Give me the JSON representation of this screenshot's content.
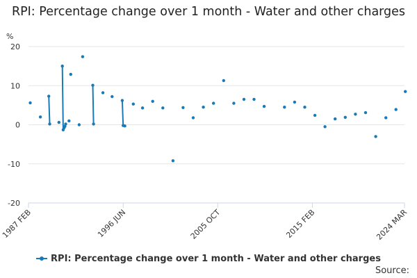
{
  "title": "RPI: Percentage change over 1 month - Water and other charges",
  "legend_label": "RPI: Percentage change over 1 month - Water and other charges",
  "source_label": "Source:",
  "colors": {
    "series": "#1a7ab5",
    "grid": "#e6e6e6",
    "axis": "#ccd6eb"
  },
  "chart_data": {
    "type": "line",
    "ylabel": "%",
    "ylim": [
      -20,
      20
    ],
    "yticks": [
      -20,
      -10,
      0,
      10,
      20
    ],
    "xlim": [
      1987.08,
      2024.17
    ],
    "xticks": [
      {
        "label": "1987 FEB",
        "value": 1987.08
      },
      {
        "label": "1996 JUN",
        "value": 1996.42
      },
      {
        "label": "2005 OCT",
        "value": 2005.75
      },
      {
        "label": "2015 FEB",
        "value": 2015.08
      },
      {
        "label": "2024 MAR",
        "value": 2024.17
      }
    ],
    "grid": true,
    "legend_position": "bottom",
    "series": [
      {
        "name": "RPI: Percentage change over 1 month - Water and other charges",
        "points": [
          [
            1987.25,
            5.6
          ],
          [
            1988.25,
            2.0
          ],
          [
            1989.08,
            7.3
          ],
          [
            1989.17,
            0.2
          ],
          [
            1990.08,
            0.6
          ],
          [
            1990.42,
            15.0
          ],
          [
            1990.5,
            -1.3
          ],
          [
            1990.58,
            -0.8
          ],
          [
            1990.67,
            -0.4
          ],
          [
            1990.75,
            0.2
          ],
          [
            1991.08,
            1.0
          ],
          [
            1991.25,
            12.9
          ],
          [
            1992.08,
            0.0
          ],
          [
            1992.42,
            17.4
          ],
          [
            1993.42,
            10.1
          ],
          [
            1993.5,
            0.2
          ],
          [
            1994.42,
            8.2
          ],
          [
            1995.33,
            7.2
          ],
          [
            1996.33,
            6.2
          ],
          [
            1996.42,
            -0.2
          ],
          [
            1996.58,
            -0.3
          ],
          [
            1997.42,
            5.3
          ],
          [
            1998.33,
            4.3
          ],
          [
            1999.33,
            6.0
          ],
          [
            2000.33,
            4.3
          ],
          [
            2001.33,
            -9.2
          ],
          [
            2002.33,
            4.4
          ],
          [
            2003.33,
            1.8
          ],
          [
            2004.33,
            4.5
          ],
          [
            2005.33,
            5.5
          ],
          [
            2006.33,
            11.3
          ],
          [
            2007.33,
            5.5
          ],
          [
            2008.33,
            6.5
          ],
          [
            2009.33,
            6.5
          ],
          [
            2010.33,
            4.7
          ],
          [
            2012.33,
            4.5
          ],
          [
            2013.33,
            5.8
          ],
          [
            2014.33,
            4.5
          ],
          [
            2015.33,
            2.4
          ],
          [
            2016.33,
            -0.5
          ],
          [
            2017.33,
            1.5
          ],
          [
            2018.33,
            1.9
          ],
          [
            2019.33,
            2.7
          ],
          [
            2020.33,
            3.1
          ],
          [
            2021.33,
            -3.0
          ],
          [
            2022.33,
            1.8
          ],
          [
            2023.33,
            3.9
          ],
          [
            2024.25,
            8.5
          ]
        ],
        "segments": [
          [
            0
          ],
          [
            1
          ],
          [
            2,
            3
          ],
          [
            4
          ],
          [
            5,
            6,
            7,
            8,
            9
          ],
          [
            10
          ],
          [
            11
          ],
          [
            12
          ],
          [
            13
          ],
          [
            14,
            15
          ],
          [
            16
          ],
          [
            17
          ],
          [
            18,
            19,
            20
          ],
          [
            21
          ],
          [
            22
          ],
          [
            23
          ],
          [
            24
          ],
          [
            25
          ],
          [
            26
          ],
          [
            27
          ],
          [
            28
          ],
          [
            29
          ],
          [
            30
          ],
          [
            31
          ],
          [
            32
          ],
          [
            33
          ],
          [
            34
          ],
          [
            35
          ],
          [
            36
          ],
          [
            37
          ],
          [
            38
          ],
          [
            39
          ],
          [
            40
          ],
          [
            41
          ],
          [
            42
          ],
          [
            43
          ],
          [
            44
          ],
          [
            45
          ],
          [
            46
          ],
          [
            47
          ]
        ]
      }
    ]
  }
}
